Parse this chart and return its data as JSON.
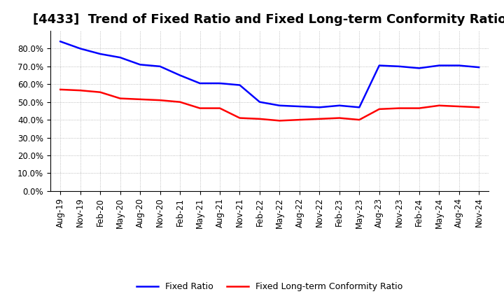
{
  "title": "[4433]  Trend of Fixed Ratio and Fixed Long-term Conformity Ratio",
  "x_labels": [
    "Aug-19",
    "Nov-19",
    "Feb-20",
    "May-20",
    "Aug-20",
    "Nov-20",
    "Feb-21",
    "May-21",
    "Aug-21",
    "Nov-21",
    "Feb-22",
    "May-22",
    "Aug-22",
    "Nov-22",
    "Feb-23",
    "May-23",
    "Aug-23",
    "Nov-23",
    "Feb-24",
    "May-24",
    "Aug-24",
    "Nov-24"
  ],
  "fixed_ratio": [
    84.0,
    80.0,
    77.0,
    75.0,
    71.0,
    70.0,
    65.0,
    60.5,
    60.5,
    59.5,
    50.0,
    48.0,
    47.5,
    47.0,
    48.0,
    47.0,
    70.5,
    70.0,
    69.0,
    70.5,
    70.5,
    69.5
  ],
  "fixed_lt_conformity": [
    57.0,
    56.5,
    55.5,
    52.0,
    51.5,
    51.0,
    50.0,
    46.5,
    46.5,
    41.0,
    40.5,
    39.5,
    40.0,
    40.5,
    41.0,
    40.0,
    46.0,
    46.5,
    46.5,
    48.0,
    47.5,
    47.0
  ],
  "fixed_ratio_color": "#0000FF",
  "fixed_lt_color": "#FF0000",
  "background_color": "#FFFFFF",
  "grid_color": "#AAAAAA",
  "ylim": [
    0,
    90
  ],
  "yticks": [
    0,
    10,
    20,
    30,
    40,
    50,
    60,
    70,
    80
  ],
  "title_fontsize": 13,
  "tick_fontsize": 8.5,
  "legend_fixed": "Fixed Ratio",
  "legend_lt": "Fixed Long-term Conformity Ratio"
}
